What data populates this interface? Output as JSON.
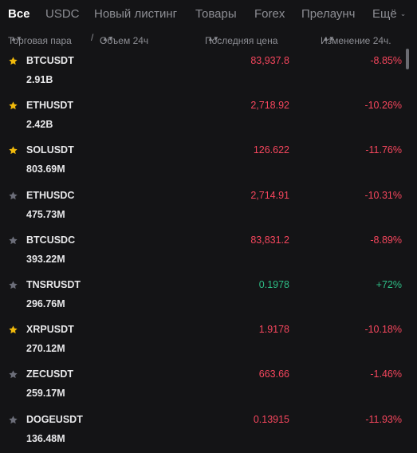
{
  "tabs": [
    {
      "label": "Все",
      "active": true
    },
    {
      "label": "USDC",
      "active": false
    },
    {
      "label": "Новый листинг",
      "active": false
    },
    {
      "label": "Товары",
      "active": false
    },
    {
      "label": "Forex",
      "active": false
    },
    {
      "label": "Прелаунч",
      "active": false
    },
    {
      "label": "Ещё",
      "active": false
    }
  ],
  "header": {
    "pair": "Торговая пара",
    "separator": "/",
    "volume": "Объем 24ч",
    "last_price": "Последняя цена",
    "change": "Изменение 24ч."
  },
  "colors": {
    "negative": "#f6465d",
    "positive": "#2ebd85",
    "star_favorite": "#f0b90b",
    "star_default": "#6b6d78"
  },
  "rows": [
    {
      "symbol": "BTCUSDT",
      "volume": "2.91B",
      "price": "83,937.8",
      "change": "-8.85%",
      "favorite": true,
      "trend": "neg"
    },
    {
      "symbol": "ETHUSDT",
      "volume": "2.42B",
      "price": "2,718.92",
      "change": "-10.26%",
      "favorite": true,
      "trend": "neg"
    },
    {
      "symbol": "SOLUSDT",
      "volume": "803.69M",
      "price": "126.622",
      "change": "-11.76%",
      "favorite": true,
      "trend": "neg"
    },
    {
      "symbol": "ETHUSDC",
      "volume": "475.73M",
      "price": "2,714.91",
      "change": "-10.31%",
      "favorite": false,
      "trend": "neg"
    },
    {
      "symbol": "BTCUSDC",
      "volume": "393.22M",
      "price": "83,831.2",
      "change": "-8.89%",
      "favorite": false,
      "trend": "neg"
    },
    {
      "symbol": "TNSRUSDT",
      "volume": "296.76M",
      "price": "0.1978",
      "change": "+72%",
      "favorite": false,
      "trend": "pos"
    },
    {
      "symbol": "XRPUSDT",
      "volume": "270.12M",
      "price": "1.9178",
      "change": "-10.18%",
      "favorite": true,
      "trend": "neg"
    },
    {
      "symbol": "ZECUSDT",
      "volume": "259.17M",
      "price": "663.66",
      "change": "-1.46%",
      "favorite": false,
      "trend": "neg"
    },
    {
      "symbol": "DOGEUSDT",
      "volume": "136.48M",
      "price": "0.13915",
      "change": "-11.93%",
      "favorite": false,
      "trend": "neg"
    }
  ]
}
